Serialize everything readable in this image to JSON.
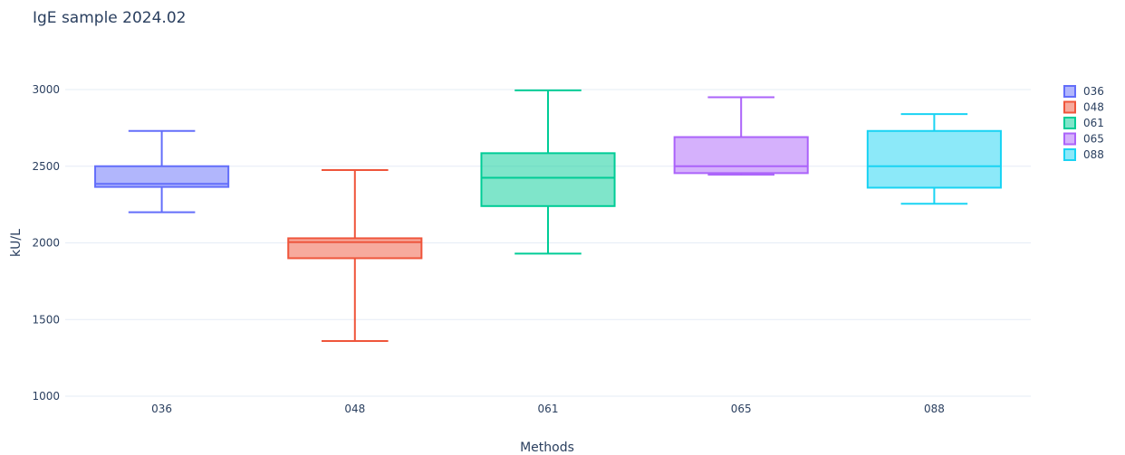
{
  "chart_data": {
    "type": "box",
    "title": "IgE sample 2024.02",
    "xlabel": "Methods",
    "ylabel": "kU/L",
    "ylim": [
      1000,
      3000
    ],
    "yticks": [
      1000,
      1500,
      2000,
      2500,
      3000
    ],
    "grid": true,
    "legend_position": "right",
    "categories": [
      "036",
      "048",
      "061",
      "065",
      "088"
    ],
    "series": [
      {
        "name": "036",
        "color": "#636efa",
        "min": 2200,
        "q1": 2365,
        "median": 2385,
        "q3": 2500,
        "max": 2730
      },
      {
        "name": "048",
        "color": "#ef553b",
        "min": 1360,
        "q1": 1900,
        "median": 2005,
        "q3": 2030,
        "max": 2475
      },
      {
        "name": "061",
        "color": "#00cc96",
        "min": 1930,
        "q1": 2240,
        "median": 2425,
        "q3": 2585,
        "max": 2995
      },
      {
        "name": "065",
        "color": "#ab63fa",
        "min": 2445,
        "q1": 2455,
        "median": 2500,
        "q3": 2690,
        "max": 2950
      },
      {
        "name": "088",
        "color": "#19d3f3",
        "min": 2255,
        "q1": 2360,
        "median": 2500,
        "q3": 2730,
        "max": 2840
      }
    ]
  }
}
